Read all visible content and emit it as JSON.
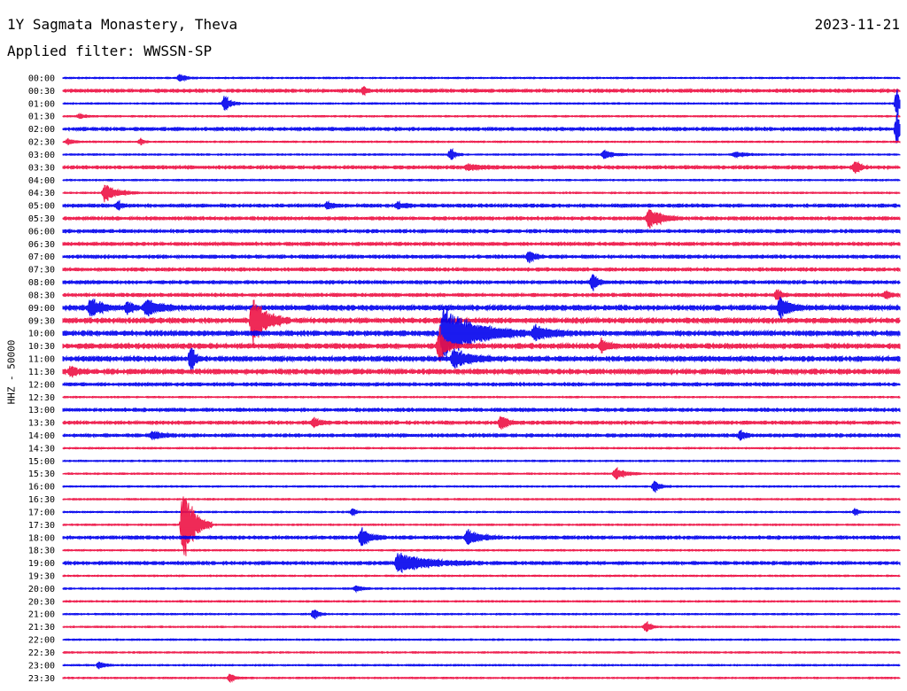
{
  "header": {
    "station": "1Y Sagmata Monastery, Theva",
    "date": "2023-11-21",
    "filter": "Applied filter: WWSSN-SP",
    "channel_label": "HHZ - 50000"
  },
  "colors": {
    "even_trace": "#0000ee",
    "odd_trace": "#ee1144"
  },
  "chart_data": {
    "type": "helicorder",
    "title": "1Y Sagmata Monastery, Theva",
    "ylabel": "HHZ - 50000",
    "row_interval_minutes": 30,
    "x_span_minutes": [
      0,
      30
    ],
    "row_labels": [
      "00:00",
      "00:30",
      "01:00",
      "01:30",
      "02:00",
      "02:30",
      "03:00",
      "03:30",
      "04:00",
      "04:30",
      "05:00",
      "05:30",
      "06:00",
      "06:30",
      "07:00",
      "07:30",
      "08:00",
      "08:30",
      "09:00",
      "09:30",
      "10:00",
      "10:30",
      "11:00",
      "11:30",
      "12:00",
      "12:30",
      "13:00",
      "13:30",
      "14:00",
      "14:30",
      "15:00",
      "15:30",
      "16:00",
      "16:30",
      "17:00",
      "17:30",
      "18:00",
      "18:30",
      "19:00",
      "19:30",
      "20:00",
      "20:30",
      "21:00",
      "21:30",
      "22:00",
      "22:30",
      "23:00",
      "23:30"
    ],
    "trace_color_pattern": [
      "blue",
      "red"
    ],
    "noise_level": [
      1,
      2,
      1,
      1,
      2,
      1,
      1,
      2,
      1,
      1,
      2,
      2,
      2,
      2,
      2,
      2,
      2,
      2,
      3,
      3,
      3,
      3,
      3,
      3,
      2,
      1,
      2,
      2,
      2,
      1,
      1,
      1,
      1,
      1,
      1,
      1,
      2,
      1,
      2,
      1,
      1,
      1,
      1,
      1,
      1,
      1,
      1,
      1
    ],
    "events": [
      {
        "row": 0,
        "minute": 4.2,
        "amplitude": 5,
        "duration": 0.4
      },
      {
        "row": 1,
        "minute": 10.8,
        "amplitude": 5,
        "duration": 0.2
      },
      {
        "row": 2,
        "minute": 5.8,
        "amplitude": 10,
        "duration": 0.4
      },
      {
        "row": 2,
        "minute": 29.9,
        "amplitude": 18,
        "duration": 0.2
      },
      {
        "row": 3,
        "minute": 0.6,
        "amplitude": 3,
        "duration": 0.4
      },
      {
        "row": 4,
        "minute": 29.9,
        "amplitude": 20,
        "duration": 0.4
      },
      {
        "row": 5,
        "minute": 0.2,
        "amplitude": 4,
        "duration": 0.3
      },
      {
        "row": 5,
        "minute": 2.8,
        "amplitude": 4,
        "duration": 0.2
      },
      {
        "row": 6,
        "minute": 13.9,
        "amplitude": 8,
        "duration": 0.3
      },
      {
        "row": 6,
        "minute": 19.4,
        "amplitude": 5,
        "duration": 0.6
      },
      {
        "row": 6,
        "minute": 24.1,
        "amplitude": 4,
        "duration": 0.6
      },
      {
        "row": 7,
        "minute": 14.5,
        "amplitude": 3,
        "duration": 1.0
      },
      {
        "row": 7,
        "minute": 28.4,
        "amplitude": 9,
        "duration": 0.3
      },
      {
        "row": 9,
        "minute": 1.5,
        "amplitude": 11,
        "duration": 0.8
      },
      {
        "row": 10,
        "minute": 2.0,
        "amplitude": 5,
        "duration": 0.2
      },
      {
        "row": 10,
        "minute": 9.5,
        "amplitude": 5,
        "duration": 0.3
      },
      {
        "row": 10,
        "minute": 12.0,
        "amplitude": 4,
        "duration": 0.5
      },
      {
        "row": 11,
        "minute": 21.0,
        "amplitude": 13,
        "duration": 0.8
      },
      {
        "row": 14,
        "minute": 16.7,
        "amplitude": 7,
        "duration": 0.4
      },
      {
        "row": 16,
        "minute": 19.0,
        "amplitude": 12,
        "duration": 0.3
      },
      {
        "row": 17,
        "minute": 25.6,
        "amplitude": 8,
        "duration": 0.3
      },
      {
        "row": 17,
        "minute": 29.5,
        "amplitude": 5,
        "duration": 0.3
      },
      {
        "row": 18,
        "minute": 1.0,
        "amplitude": 12,
        "duration": 0.7
      },
      {
        "row": 18,
        "minute": 2.3,
        "amplitude": 8,
        "duration": 0.4
      },
      {
        "row": 18,
        "minute": 3.0,
        "amplitude": 10,
        "duration": 0.8
      },
      {
        "row": 18,
        "minute": 25.7,
        "amplitude": 13,
        "duration": 0.6
      },
      {
        "row": 19,
        "minute": 6.8,
        "amplitude": 30,
        "duration": 0.9
      },
      {
        "row": 20,
        "minute": 13.6,
        "amplitude": 34,
        "duration": 2.0
      },
      {
        "row": 20,
        "minute": 16.9,
        "amplitude": 9,
        "duration": 1.0
      },
      {
        "row": 21,
        "minute": 13.5,
        "amplitude": 25,
        "duration": 0.4
      },
      {
        "row": 21,
        "minute": 19.3,
        "amplitude": 8,
        "duration": 0.4
      },
      {
        "row": 22,
        "minute": 4.6,
        "amplitude": 22,
        "duration": 0.2
      },
      {
        "row": 22,
        "minute": 14.0,
        "amplitude": 12,
        "duration": 1.0
      },
      {
        "row": 23,
        "minute": 0.3,
        "amplitude": 6,
        "duration": 0.4
      },
      {
        "row": 27,
        "minute": 9.0,
        "amplitude": 6,
        "duration": 0.4
      },
      {
        "row": 27,
        "minute": 15.7,
        "amplitude": 11,
        "duration": 0.4
      },
      {
        "row": 28,
        "minute": 3.2,
        "amplitude": 5,
        "duration": 0.6
      },
      {
        "row": 28,
        "minute": 24.3,
        "amplitude": 6,
        "duration": 0.3
      },
      {
        "row": 31,
        "minute": 19.8,
        "amplitude": 8,
        "duration": 0.6
      },
      {
        "row": 32,
        "minute": 21.2,
        "amplitude": 7,
        "duration": 0.4
      },
      {
        "row": 34,
        "minute": 10.4,
        "amplitude": 5,
        "duration": 0.2
      },
      {
        "row": 34,
        "minute": 28.4,
        "amplitude": 6,
        "duration": 0.2
      },
      {
        "row": 35,
        "minute": 4.3,
        "amplitude": 55,
        "duration": 0.7
      },
      {
        "row": 36,
        "minute": 10.7,
        "amplitude": 12,
        "duration": 0.6
      },
      {
        "row": 36,
        "minute": 14.5,
        "amplitude": 9,
        "duration": 0.8
      },
      {
        "row": 38,
        "minute": 12.0,
        "amplitude": 12,
        "duration": 2.0
      },
      {
        "row": 40,
        "minute": 10.5,
        "amplitude": 4,
        "duration": 0.4
      },
      {
        "row": 42,
        "minute": 9.0,
        "amplitude": 8,
        "duration": 0.3
      },
      {
        "row": 43,
        "minute": 20.9,
        "amplitude": 8,
        "duration": 0.3
      },
      {
        "row": 46,
        "minute": 1.3,
        "amplitude": 4,
        "duration": 0.4
      },
      {
        "row": 47,
        "minute": 6.0,
        "amplitude": 6,
        "duration": 0.3
      }
    ]
  }
}
